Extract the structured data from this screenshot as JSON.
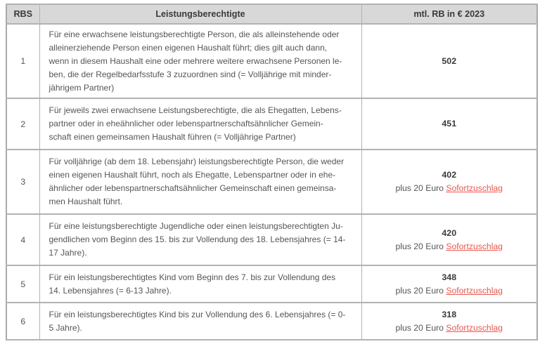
{
  "table": {
    "headers": [
      "RBS",
      "Leistungsberechtigte",
      "mtl. RB in € 2023"
    ],
    "rows": [
      {
        "rbs": "1",
        "description": "Für eine erwachsene leistungsberechtigte Person, die als alleinstehende oder\nalleinerziehende Person einen eigenen Haushalt führt; dies gilt auch dann,\nwenn in diesem Haushalt eine oder mehrere weitere erwachsene Personen le-\nben, die der Regelbedarfsstufe 3 zuzuordnen sind (= Volljährige mit minder-\njährigem Partner)",
        "amount": "502",
        "supplement_prefix": "",
        "supplement_link": ""
      },
      {
        "rbs": "2",
        "description": "Für jeweils zwei erwachsene Leistungsberechtigte, die als Ehegatten, Lebens-\npartner oder in eheähnlicher oder lebenspartnerschaftsähnlicher Gemein-\nschaft einen gemeinsamen Haushalt führen (= Volljährige Partner)",
        "amount": "451",
        "supplement_prefix": "",
        "supplement_link": ""
      },
      {
        "rbs": "3",
        "description": "Für volljährige (ab dem 18. Lebensjahr) leistungsberechtigte Person, die weder\neinen eigenen Haushalt führt, noch als Ehegatte, Lebenspartner oder in ehe-\nähnlicher oder lebenspartnerschaftsähnlicher Gemeinschaft einen gemeinsa-\nmen Haushalt führt.",
        "amount": "402",
        "supplement_prefix": "plus 20 Euro ",
        "supplement_link": "Sofortzuschlag"
      },
      {
        "rbs": "4",
        "description": "Für eine leistungsberechtigte Jugendliche oder einen leistungsberechtigten Ju-\ngendlichen vom Beginn des 15. bis zur Vollendung des 18. Lebensjahres (= 14-\n17 Jahre).",
        "amount": "420",
        "supplement_prefix": "plus 20 Euro ",
        "supplement_link": "Sofortzuschlag"
      },
      {
        "rbs": "5",
        "description": "Für ein leistungsberechtigtes Kind vom Beginn des 7. bis zur Vollendung des\n14. Lebensjahres (= 6-13 Jahre).",
        "amount": "348",
        "supplement_prefix": "plus 20 Euro ",
        "supplement_link": "Sofortzuschlag"
      },
      {
        "rbs": "6",
        "description": "Für ein leistungsberechtigtes Kind bis zur Vollendung des 6. Lebensjahres (= 0-\n5 Jahre).",
        "amount": "318",
        "supplement_prefix": "plus 20 Euro ",
        "supplement_link": "Sofortzuschlag"
      }
    ],
    "colors": {
      "header_bg": "#d8d8d8",
      "border": "#b2b2b2",
      "body_text": "#555555",
      "header_text": "#3a3a3a",
      "amount_text": "#3a3a3a",
      "link": "#e9574e"
    }
  }
}
